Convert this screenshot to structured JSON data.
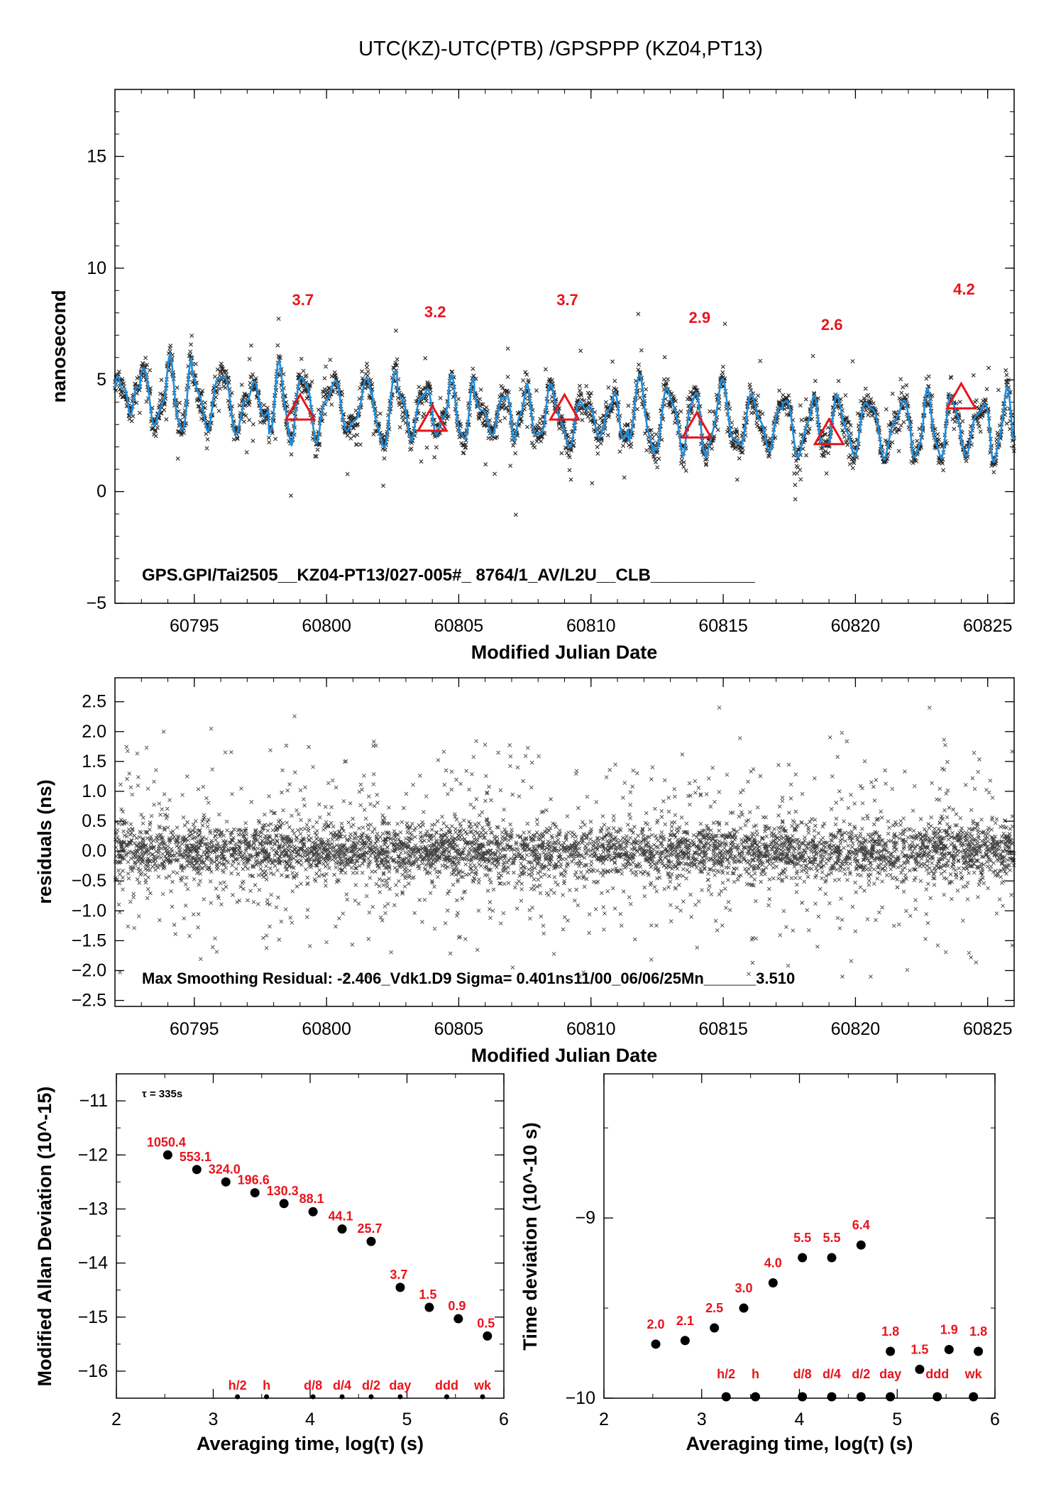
{
  "title": "UTC(KZ)-UTC(PTB)  /GPSPPP  (KZ04,PT13)",
  "colors": {
    "raw": "#000000",
    "smooth": "#1f8fdf",
    "marker": "#e8141c",
    "label": "#e8141c"
  },
  "chart_data": [
    {
      "type": "scatter",
      "panel": "time-series",
      "xlabel": "Modified Julian Date",
      "ylabel": "nanosecond",
      "xlim": [
        60792,
        60826
      ],
      "ylim": [
        -5,
        18
      ],
      "xticks": [
        60795,
        60800,
        60805,
        60810,
        60815,
        60820,
        60825
      ],
      "yticks": [
        -5,
        0,
        5,
        10,
        15
      ],
      "annotation": "GPS.GPI/Tai2505__KZ04-PT13/027-005#_  8764/1_AV/L2U__CLB___________",
      "marker_label_values": [
        {
          "x": 60799,
          "y": 3.7,
          "label": "3.7"
        },
        {
          "x": 60804,
          "y": 3.2,
          "label": "3.2"
        },
        {
          "x": 60809,
          "y": 3.7,
          "label": "3.7"
        },
        {
          "x": 60814,
          "y": 2.9,
          "label": "2.9"
        },
        {
          "x": 60819,
          "y": 2.6,
          "label": "2.6"
        },
        {
          "x": 60824,
          "y": 4.2,
          "label": "4.2"
        }
      ],
      "trend": {
        "x": [
          60792,
          60800,
          60809,
          60820,
          60826
        ],
        "y": [
          4.4,
          3.8,
          3.4,
          2.9,
          2.9
        ]
      },
      "series": [
        {
          "name": "",
          "style": "x-markers",
          "color": "#000000"
        },
        {
          "name": "",
          "style": "smoothed-line",
          "color": "#1f8fdf"
        }
      ],
      "grid": false
    },
    {
      "type": "scatter",
      "panel": "residuals",
      "xlabel": "Modified Julian Date",
      "ylabel": "residuals (ns)",
      "xlim": [
        60792,
        60826
      ],
      "ylim": [
        -2.6,
        2.9
      ],
      "xticks": [
        60795,
        60800,
        60805,
        60810,
        60815,
        60820,
        60825
      ],
      "yticks": [
        -2.5,
        -2.0,
        -1.5,
        -1.0,
        -0.5,
        0.0,
        0.5,
        1.0,
        1.5,
        2.0,
        2.5
      ],
      "ytick_labels": [
        "−2.5",
        "−2.0",
        "−1.5",
        "−1.0",
        "−0.5",
        "0.0",
        "0.5",
        "1.0",
        "1.5",
        "2.0",
        "2.5"
      ],
      "annotation": "Max Smoothing Residual: -2.406_Vdk1.D9  Sigma= 0.401ns11/00_06/06/25Mn______3.510",
      "sigma": 0.401,
      "max_residual": -2.406,
      "grid": false
    },
    {
      "type": "scatter",
      "panel": "modified-allan-deviation",
      "xlabel": "Averaging time, log(τ) (s)",
      "ylabel": "Modified Allan Deviation (10^-15)",
      "xlim": [
        2,
        6
      ],
      "ylim": [
        -16.5,
        -10.5
      ],
      "xticks": [
        2,
        3,
        4,
        5,
        6
      ],
      "yticks": [
        -16,
        -15,
        -14,
        -13,
        -12,
        -11
      ],
      "ytick_labels": [
        "−16",
        "−15",
        "−14",
        "−13",
        "−12",
        "−11"
      ],
      "tau_note": "τ = 335s",
      "x": [
        2.53,
        2.83,
        3.13,
        3.43,
        3.73,
        4.03,
        4.33,
        4.63,
        4.93,
        5.23,
        5.53,
        5.83
      ],
      "values": [
        -12.0,
        -12.27,
        -12.5,
        -12.7,
        -12.9,
        -13.05,
        -13.37,
        -13.6,
        -14.45,
        -14.82,
        -15.03,
        -15.35
      ],
      "point_labels": [
        "1050.4",
        "553.1",
        "324.0",
        "196.6",
        "130.3",
        "88.1",
        "44.1",
        "25.7",
        "3.7",
        "1.5",
        "0.9",
        "0.5"
      ],
      "ref_labels": [
        {
          "x": 3.25,
          "label": "h/2"
        },
        {
          "x": 3.55,
          "label": "h"
        },
        {
          "x": 4.03,
          "label": "d/8"
        },
        {
          "x": 4.33,
          "label": "d/4"
        },
        {
          "x": 4.63,
          "label": "d/2"
        },
        {
          "x": 4.93,
          "label": "day"
        },
        {
          "x": 5.41,
          "label": "ddd"
        },
        {
          "x": 5.78,
          "label": "wk"
        }
      ],
      "ref_points_x": [
        3.25,
        3.55,
        4.03,
        4.33,
        4.63,
        4.93,
        5.41,
        5.78
      ],
      "grid": false
    },
    {
      "type": "scatter",
      "panel": "time-deviation",
      "xlabel": "Averaging time, log(τ) (s)",
      "ylabel": "Time deviation (10^-10 s)",
      "xlim": [
        2,
        6
      ],
      "ylim": [
        -10,
        -8.2
      ],
      "xticks": [
        2,
        3,
        4,
        5,
        6
      ],
      "yticks": [
        -10,
        -9
      ],
      "ytick_labels": [
        "−10",
        "−9"
      ],
      "x": [
        2.53,
        2.83,
        3.13,
        3.43,
        3.73,
        4.03,
        4.33,
        4.63,
        4.93,
        5.23,
        5.53,
        5.83
      ],
      "values": [
        -9.7,
        -9.68,
        -9.61,
        -9.5,
        -9.36,
        -9.22,
        -9.22,
        -9.15,
        -9.74,
        -9.84,
        -9.73,
        -9.74
      ],
      "point_labels": [
        "2.0",
        "2.1",
        "2.5",
        "3.0",
        "4.0",
        "5.5",
        "5.5",
        "6.4",
        "1.8",
        "1.5",
        "1.9",
        "1.8"
      ],
      "ref_labels": [
        {
          "x": 3.25,
          "label": "h/2"
        },
        {
          "x": 3.55,
          "label": "h"
        },
        {
          "x": 4.03,
          "label": "d/8"
        },
        {
          "x": 4.33,
          "label": "d/4"
        },
        {
          "x": 4.63,
          "label": "d/2"
        },
        {
          "x": 4.93,
          "label": "day"
        },
        {
          "x": 5.41,
          "label": "ddd"
        },
        {
          "x": 5.78,
          "label": "wk"
        }
      ],
      "ref_points_x": [
        3.25,
        3.55,
        4.03,
        4.33,
        4.63,
        4.93,
        5.41,
        5.78
      ],
      "grid": false
    }
  ]
}
